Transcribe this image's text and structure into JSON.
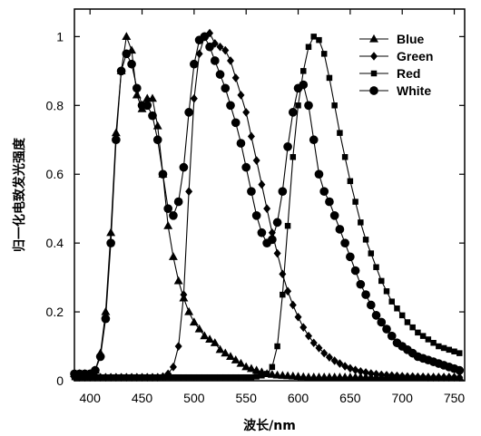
{
  "chart_data": {
    "type": "line",
    "xlabel": "波长/nm",
    "ylabel": "归一化电致发光强度",
    "xlim": [
      385,
      760
    ],
    "ylim": [
      0,
      1.08
    ],
    "xticks": [
      400,
      450,
      500,
      550,
      600,
      650,
      700,
      750
    ],
    "yticks": [
      0,
      0.2,
      0.4,
      0.6,
      0.8,
      1
    ],
    "ytick_labels": [
      "0",
      "0.2",
      "0.4",
      "0.6",
      "0.8",
      "1"
    ],
    "grid": false,
    "legend_position": "top-right",
    "series": [
      {
        "name": "Blue",
        "marker": "triangle",
        "x": [
          385,
          390,
          395,
          400,
          405,
          410,
          415,
          420,
          425,
          430,
          435,
          440,
          445,
          450,
          455,
          460,
          465,
          470,
          475,
          480,
          485,
          490,
          495,
          500,
          505,
          510,
          515,
          520,
          525,
          530,
          535,
          540,
          545,
          550,
          555,
          560,
          565,
          570,
          575,
          580,
          585,
          590,
          595,
          600,
          605,
          610,
          615,
          620,
          625,
          630,
          635,
          640,
          645,
          650,
          655,
          660,
          665,
          670,
          675,
          680,
          685,
          690,
          695,
          700,
          705,
          710,
          715,
          720,
          725,
          730,
          735,
          740,
          745,
          750,
          755
        ],
        "y": [
          0.02,
          0.02,
          0.02,
          0.02,
          0.03,
          0.08,
          0.2,
          0.43,
          0.72,
          0.9,
          1.0,
          0.96,
          0.83,
          0.79,
          0.82,
          0.82,
          0.74,
          0.6,
          0.45,
          0.36,
          0.29,
          0.24,
          0.2,
          0.17,
          0.15,
          0.13,
          0.12,
          0.11,
          0.09,
          0.08,
          0.07,
          0.06,
          0.05,
          0.04,
          0.035,
          0.03,
          0.025,
          0.02,
          0.018,
          0.016,
          0.015,
          0.014,
          0.013,
          0.012,
          0.011,
          0.01,
          0.01,
          0.01,
          0.01,
          0.01,
          0.01,
          0.01,
          0.01,
          0.01,
          0.01,
          0.01,
          0.01,
          0.01,
          0.01,
          0.01,
          0.01,
          0.01,
          0.01,
          0.01,
          0.01,
          0.01,
          0.01,
          0.01,
          0.01,
          0.01,
          0.01,
          0.01,
          0.01,
          0.01,
          0.01
        ]
      },
      {
        "name": "Green",
        "marker": "diamond",
        "x": [
          385,
          390,
          395,
          400,
          405,
          410,
          415,
          420,
          425,
          430,
          435,
          440,
          445,
          450,
          455,
          460,
          465,
          470,
          475,
          480,
          485,
          490,
          495,
          500,
          505,
          510,
          515,
          520,
          525,
          530,
          535,
          540,
          545,
          550,
          555,
          560,
          565,
          570,
          575,
          580,
          585,
          590,
          595,
          600,
          605,
          610,
          615,
          620,
          625,
          630,
          635,
          640,
          645,
          650,
          655,
          660,
          665,
          670,
          675,
          680,
          685,
          690,
          695,
          700,
          705,
          710,
          715,
          720,
          725,
          730,
          735,
          740,
          745,
          750,
          755
        ],
        "y": [
          0.01,
          0.01,
          0.01,
          0.01,
          0.01,
          0.01,
          0.01,
          0.01,
          0.01,
          0.01,
          0.01,
          0.01,
          0.01,
          0.01,
          0.01,
          0.01,
          0.01,
          0.012,
          0.02,
          0.04,
          0.1,
          0.25,
          0.55,
          0.82,
          0.95,
          1.0,
          1.01,
          0.98,
          0.97,
          0.96,
          0.93,
          0.88,
          0.83,
          0.78,
          0.71,
          0.64,
          0.57,
          0.5,
          0.43,
          0.37,
          0.31,
          0.26,
          0.22,
          0.185,
          0.155,
          0.13,
          0.11,
          0.095,
          0.08,
          0.068,
          0.058,
          0.05,
          0.042,
          0.036,
          0.031,
          0.027,
          0.024,
          0.021,
          0.019,
          0.017,
          0.016,
          0.015,
          0.014,
          0.013,
          0.012,
          0.012,
          0.011,
          0.011,
          0.01,
          0.01,
          0.01,
          0.01,
          0.01,
          0.01,
          0.01
        ]
      },
      {
        "name": "Red",
        "marker": "square",
        "x": [
          385,
          390,
          395,
          400,
          405,
          410,
          415,
          420,
          425,
          430,
          435,
          440,
          445,
          450,
          455,
          460,
          465,
          470,
          475,
          480,
          485,
          490,
          495,
          500,
          505,
          510,
          515,
          520,
          525,
          530,
          535,
          540,
          545,
          550,
          555,
          560,
          565,
          570,
          575,
          580,
          585,
          590,
          595,
          600,
          605,
          610,
          615,
          620,
          625,
          630,
          635,
          640,
          645,
          650,
          655,
          660,
          665,
          670,
          675,
          680,
          685,
          690,
          695,
          700,
          705,
          710,
          715,
          720,
          725,
          730,
          735,
          740,
          745,
          750,
          755
        ],
        "y": [
          0.01,
          0.01,
          0.01,
          0.01,
          0.01,
          0.01,
          0.01,
          0.01,
          0.01,
          0.01,
          0.01,
          0.01,
          0.01,
          0.01,
          0.01,
          0.01,
          0.01,
          0.01,
          0.01,
          0.01,
          0.01,
          0.01,
          0.01,
          0.01,
          0.01,
          0.01,
          0.01,
          0.01,
          0.01,
          0.01,
          0.01,
          0.01,
          0.01,
          0.01,
          0.01,
          0.012,
          0.015,
          0.02,
          0.04,
          0.1,
          0.25,
          0.45,
          0.65,
          0.8,
          0.9,
          0.97,
          1.0,
          0.99,
          0.95,
          0.88,
          0.8,
          0.72,
          0.65,
          0.58,
          0.52,
          0.46,
          0.41,
          0.37,
          0.33,
          0.29,
          0.26,
          0.23,
          0.21,
          0.19,
          0.17,
          0.155,
          0.14,
          0.13,
          0.12,
          0.11,
          0.1,
          0.095,
          0.09,
          0.085,
          0.08
        ]
      },
      {
        "name": "White",
        "marker": "circle",
        "x": [
          385,
          390,
          395,
          400,
          405,
          410,
          415,
          420,
          425,
          430,
          435,
          440,
          445,
          450,
          455,
          460,
          465,
          470,
          475,
          480,
          485,
          490,
          495,
          500,
          505,
          510,
          515,
          520,
          525,
          530,
          535,
          540,
          545,
          550,
          555,
          560,
          565,
          570,
          575,
          580,
          585,
          590,
          595,
          600,
          605,
          610,
          615,
          620,
          625,
          630,
          635,
          640,
          645,
          650,
          655,
          660,
          665,
          670,
          675,
          680,
          685,
          690,
          695,
          700,
          705,
          710,
          715,
          720,
          725,
          730,
          735,
          740,
          745,
          750,
          755
        ],
        "y": [
          0.02,
          0.02,
          0.02,
          0.02,
          0.03,
          0.07,
          0.18,
          0.4,
          0.7,
          0.9,
          0.95,
          0.92,
          0.85,
          0.8,
          0.8,
          0.77,
          0.7,
          0.6,
          0.5,
          0.48,
          0.52,
          0.62,
          0.78,
          0.92,
          0.99,
          1.0,
          0.97,
          0.93,
          0.89,
          0.85,
          0.8,
          0.75,
          0.69,
          0.62,
          0.55,
          0.48,
          0.43,
          0.4,
          0.41,
          0.46,
          0.55,
          0.68,
          0.78,
          0.85,
          0.86,
          0.8,
          0.7,
          0.6,
          0.55,
          0.52,
          0.48,
          0.44,
          0.4,
          0.36,
          0.32,
          0.28,
          0.25,
          0.22,
          0.19,
          0.17,
          0.15,
          0.13,
          0.11,
          0.1,
          0.09,
          0.08,
          0.07,
          0.065,
          0.06,
          0.055,
          0.05,
          0.045,
          0.04,
          0.035,
          0.03
        ]
      }
    ]
  }
}
